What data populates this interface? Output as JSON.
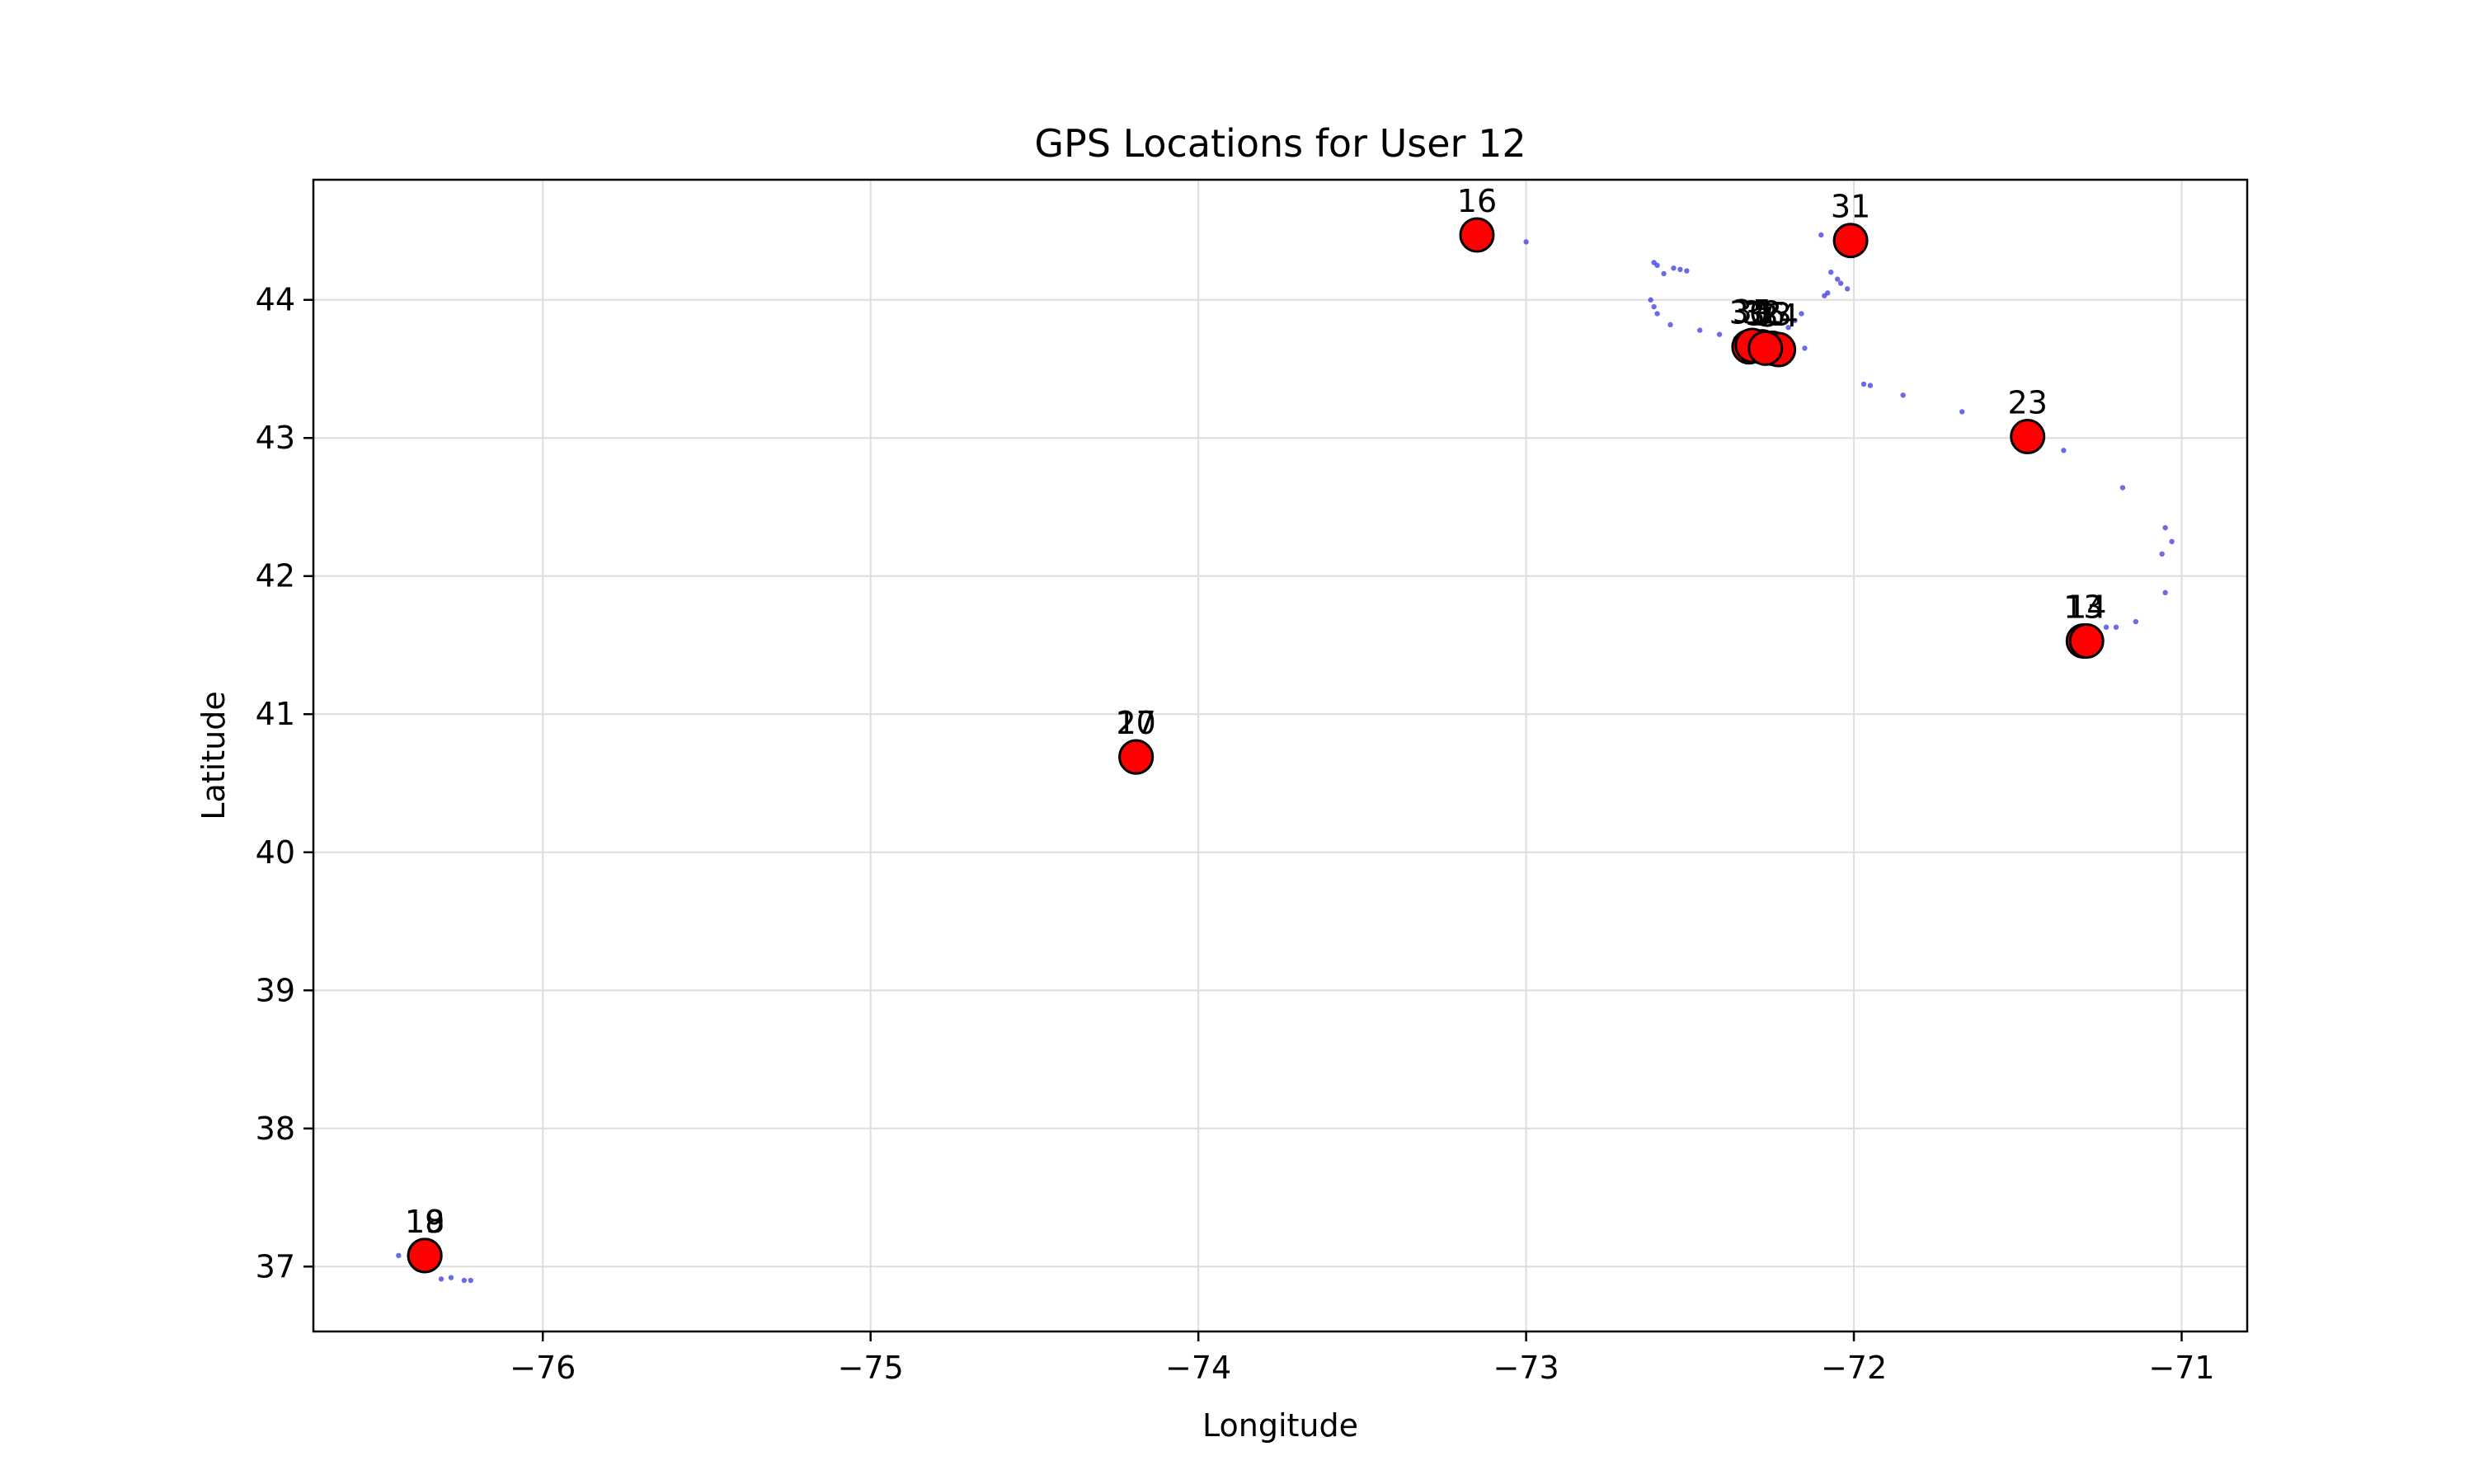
{
  "chart_data": {
    "type": "scatter",
    "title": "GPS Locations for User 12",
    "xlabel": "Longitude",
    "ylabel": "Latitude",
    "xlim": [
      -76.7,
      -70.8
    ],
    "ylim": [
      36.53,
      44.87
    ],
    "xticks": [
      -76,
      -75,
      -74,
      -73,
      -72,
      -71
    ],
    "yticks": [
      37,
      38,
      39,
      40,
      41,
      42,
      43,
      44
    ],
    "xtick_labels": [
      "−76",
      "−75",
      "−74",
      "−73",
      "−72",
      "−71"
    ],
    "ytick_labels": [
      "37",
      "38",
      "39",
      "40",
      "41",
      "42",
      "43",
      "44"
    ],
    "grid": true,
    "colors": {
      "trace": "#3a3ae0",
      "marker_fill": "#ff0000",
      "marker_edge": "#000000",
      "grid": "#dddddd"
    },
    "trace_points": [
      {
        "x": -76.44,
        "y": 37.08
      },
      {
        "x": -76.31,
        "y": 36.91
      },
      {
        "x": -76.28,
        "y": 36.92
      },
      {
        "x": -76.24,
        "y": 36.9
      },
      {
        "x": -76.22,
        "y": 36.9
      },
      {
        "x": -73.0,
        "y": 44.42
      },
      {
        "x": -72.61,
        "y": 44.27
      },
      {
        "x": -72.6,
        "y": 44.25
      },
      {
        "x": -72.58,
        "y": 44.19
      },
      {
        "x": -72.55,
        "y": 44.23
      },
      {
        "x": -72.53,
        "y": 44.22
      },
      {
        "x": -72.51,
        "y": 44.21
      },
      {
        "x": -72.62,
        "y": 44.0
      },
      {
        "x": -72.61,
        "y": 43.95
      },
      {
        "x": -72.6,
        "y": 43.9
      },
      {
        "x": -72.56,
        "y": 43.82
      },
      {
        "x": -72.47,
        "y": 43.78
      },
      {
        "x": -72.41,
        "y": 43.75
      },
      {
        "x": -72.36,
        "y": 43.72
      },
      {
        "x": -72.3,
        "y": 43.7
      },
      {
        "x": -72.2,
        "y": 43.8
      },
      {
        "x": -72.18,
        "y": 43.85
      },
      {
        "x": -72.16,
        "y": 43.9
      },
      {
        "x": -72.15,
        "y": 43.65
      },
      {
        "x": -72.1,
        "y": 44.47
      },
      {
        "x": -72.07,
        "y": 44.2
      },
      {
        "x": -72.05,
        "y": 44.15
      },
      {
        "x": -72.04,
        "y": 44.12
      },
      {
        "x": -72.02,
        "y": 44.08
      },
      {
        "x": -72.09,
        "y": 44.03
      },
      {
        "x": -72.08,
        "y": 44.05
      },
      {
        "x": -71.97,
        "y": 43.39
      },
      {
        "x": -71.95,
        "y": 43.38
      },
      {
        "x": -71.85,
        "y": 43.31
      },
      {
        "x": -71.67,
        "y": 43.19
      },
      {
        "x": -71.36,
        "y": 42.91
      },
      {
        "x": -71.18,
        "y": 42.64
      },
      {
        "x": -71.05,
        "y": 42.35
      },
      {
        "x": -71.03,
        "y": 42.25
      },
      {
        "x": -71.06,
        "y": 42.16
      },
      {
        "x": -71.05,
        "y": 41.88
      },
      {
        "x": -71.14,
        "y": 41.67
      },
      {
        "x": -71.2,
        "y": 41.63
      },
      {
        "x": -71.23,
        "y": 41.63
      }
    ],
    "markers": [
      {
        "label": "18",
        "x": -76.36,
        "y": 37.08
      },
      {
        "label": "19",
        "x": -76.36,
        "y": 37.08
      },
      {
        "label": "10",
        "x": -74.19,
        "y": 40.69
      },
      {
        "label": "27",
        "x": -74.19,
        "y": 40.69
      },
      {
        "label": "16",
        "x": -73.15,
        "y": 44.47
      },
      {
        "label": "31",
        "x": -72.01,
        "y": 44.43
      },
      {
        "label": "23",
        "x": -71.47,
        "y": 43.01
      },
      {
        "label": "13",
        "x": -71.3,
        "y": 41.53
      },
      {
        "label": "14",
        "x": -71.29,
        "y": 41.53
      },
      {
        "label": "30",
        "x": -72.32,
        "y": 43.66
      },
      {
        "label": "32",
        "x": -72.28,
        "y": 43.66
      },
      {
        "label": "33",
        "x": -72.25,
        "y": 43.65
      },
      {
        "label": "34",
        "x": -72.23,
        "y": 43.64
      },
      {
        "label": "35",
        "x": -72.31,
        "y": 43.67
      },
      {
        "label": "36",
        "x": -72.27,
        "y": 43.65
      }
    ]
  }
}
